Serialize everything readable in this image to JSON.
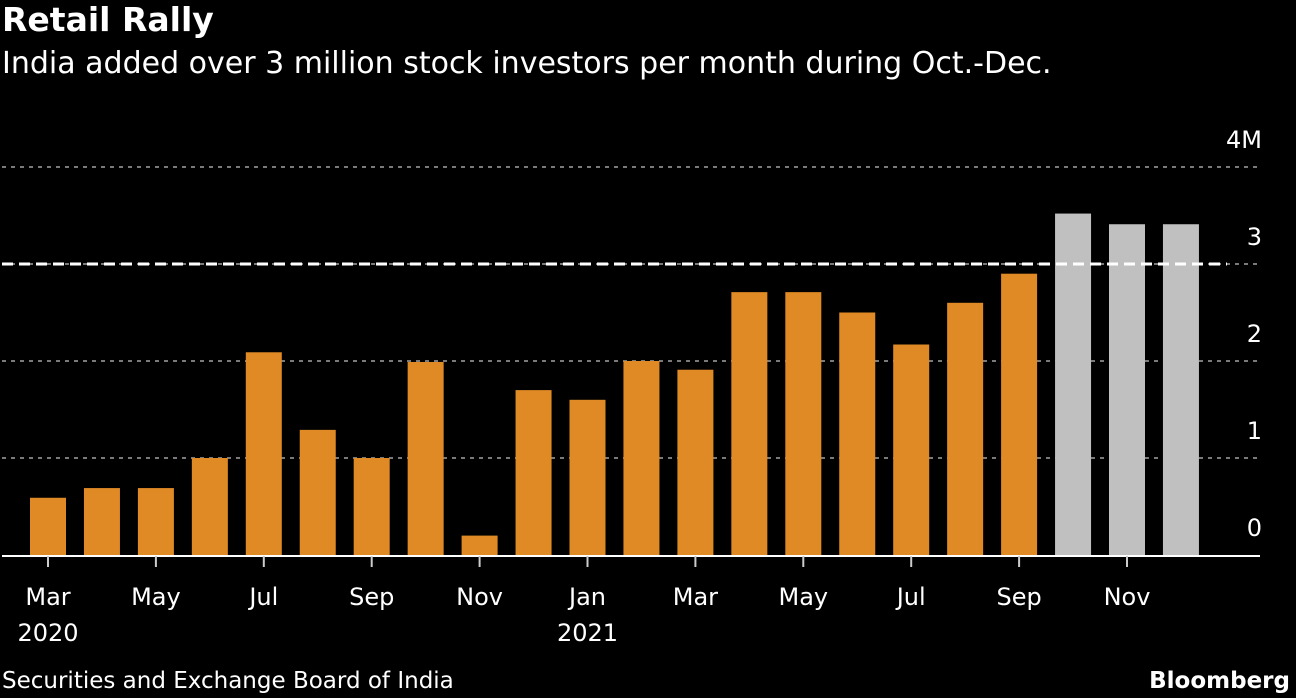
{
  "header": {
    "title": "Retail Rally",
    "subtitle": "India added over 3 million stock investors per month during Oct.-Dec."
  },
  "footer": {
    "source": "Securities and Exchange Board of India",
    "brand": "Bloomberg"
  },
  "chart_data": {
    "type": "bar",
    "title": "Retail Rally",
    "subtitle": "India added over 3 million stock investors per month during Oct.-Dec.",
    "xlabel": "",
    "ylabel": "",
    "ylim": [
      0,
      4
    ],
    "y_ticks": [
      {
        "value": 0,
        "label": "0"
      },
      {
        "value": 1,
        "label": "1"
      },
      {
        "value": 2,
        "label": "2"
      },
      {
        "value": 3,
        "label": "3"
      },
      {
        "value": 4,
        "label": "4M"
      }
    ],
    "grid": true,
    "reference_line": {
      "value": 3,
      "style": "dashed",
      "color": "#ffffff"
    },
    "categories": [
      "Mar 2020",
      "Apr 2020",
      "May 2020",
      "Jun 2020",
      "Jul 2020",
      "Aug 2020",
      "Sep 2020",
      "Oct 2020",
      "Nov 2020",
      "Dec 2020",
      "Jan 2021",
      "Feb 2021",
      "Mar 2021",
      "Apr 2021",
      "May 2021",
      "Jun 2021",
      "Jul 2021",
      "Aug 2021",
      "Sep 2021",
      "Oct 2021",
      "Nov 2021",
      "Dec 2021"
    ],
    "values": [
      0.59,
      0.69,
      0.69,
      1.0,
      2.09,
      1.29,
      1.0,
      1.99,
      0.2,
      1.7,
      1.6,
      2.0,
      1.91,
      2.71,
      2.71,
      2.5,
      2.17,
      2.6,
      2.9,
      3.52,
      3.41,
      3.41
    ],
    "highlighted": [
      false,
      false,
      false,
      false,
      false,
      false,
      false,
      false,
      false,
      false,
      false,
      false,
      false,
      false,
      false,
      false,
      false,
      false,
      false,
      true,
      true,
      true
    ],
    "x_tick_labels": [
      {
        "index": 0,
        "month": "Mar",
        "year": "2020"
      },
      {
        "index": 2,
        "month": "May",
        "year": ""
      },
      {
        "index": 4,
        "month": "Jul",
        "year": ""
      },
      {
        "index": 6,
        "month": "Sep",
        "year": ""
      },
      {
        "index": 8,
        "month": "Nov",
        "year": ""
      },
      {
        "index": 10,
        "month": "Jan",
        "year": "2021"
      },
      {
        "index": 12,
        "month": "Mar",
        "year": ""
      },
      {
        "index": 14,
        "month": "May",
        "year": ""
      },
      {
        "index": 16,
        "month": "Jul",
        "year": ""
      },
      {
        "index": 18,
        "month": "Sep",
        "year": ""
      },
      {
        "index": 20,
        "month": "Nov",
        "year": ""
      }
    ],
    "colors": {
      "bar": "#e08a25",
      "highlight": "#c0c0c0",
      "grid": "#7a7a7a",
      "axis": "#ffffff"
    },
    "legend": "none"
  }
}
